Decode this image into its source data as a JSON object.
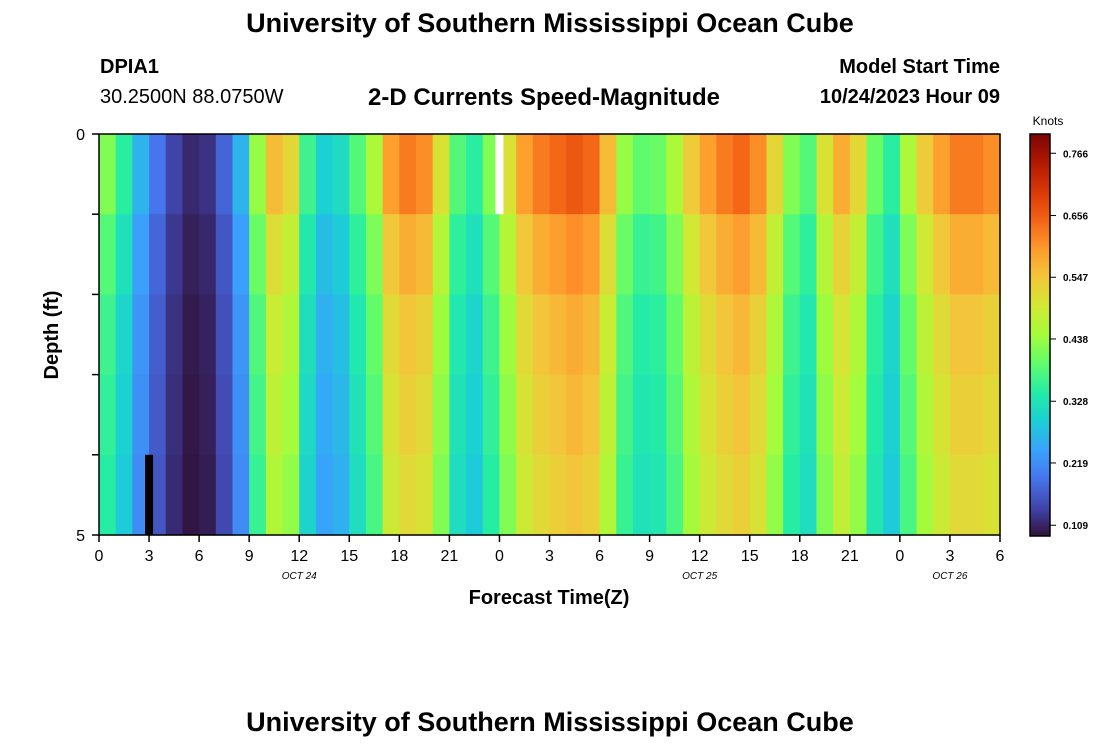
{
  "header": {
    "title": "University of Southern Mississippi Ocean Cube",
    "station_id": "DPIA1",
    "coords": "30.2500N  88.0750W",
    "product": "2-D Currents Speed-Magnitude",
    "model_start_label": "Model Start Time",
    "model_start_value": "10/24/2023 Hour 09"
  },
  "footer": {
    "title": "University of Southern Mississippi Ocean Cube"
  },
  "colors": {
    "missing_high": "#ffffff",
    "missing_low": "#000000",
    "colormap": [
      "#30123b",
      "#4145ab",
      "#4675ed",
      "#39a2fc",
      "#1bcfd4",
      "#24eca6",
      "#61fc6c",
      "#a4fc3b",
      "#d1e834",
      "#f3c63a",
      "#fe9b2d",
      "#f36315",
      "#d93806",
      "#b11901",
      "#7a0403"
    ]
  },
  "chart_data": {
    "type": "heatmap",
    "xlabel": "Forecast Time(Z)",
    "ylabel": "Depth (ft)",
    "x_range_hours": [
      0,
      54
    ],
    "y_range_ft": [
      0,
      5
    ],
    "y_tick_labels": [
      "0",
      "5"
    ],
    "x_tick_labels": [
      "0",
      "3",
      "6",
      "9",
      "12",
      "15",
      "18",
      "21",
      "0",
      "3",
      "6",
      "9",
      "12",
      "15",
      "18",
      "21",
      "0",
      "3",
      "6"
    ],
    "date_labels": [
      {
        "text": "OCT 24",
        "hour": 12
      },
      {
        "text": "OCT 25",
        "hour": 36
      },
      {
        "text": "OCT 26",
        "hour": 51
      }
    ],
    "colorbar": {
      "units": "Knots",
      "min": 0.09,
      "max": 0.8,
      "tick_labels": [
        "0.766",
        "0.656",
        "0.547",
        "0.438",
        "0.328",
        "0.219",
        "0.109"
      ],
      "tick_values": [
        0.766,
        0.656,
        0.547,
        0.438,
        0.328,
        0.219,
        0.109
      ]
    },
    "depth_layers": 5,
    "hour_columns": [
      0,
      1,
      2,
      3,
      4,
      5,
      6,
      7,
      8,
      9,
      10,
      11,
      12,
      13,
      14,
      15,
      16,
      17,
      18,
      19,
      20,
      21,
      22,
      23,
      24,
      25,
      26,
      27,
      28,
      29,
      30,
      31,
      32,
      33,
      34,
      35,
      36,
      37,
      38,
      39,
      40,
      41,
      42,
      43,
      44,
      45,
      46,
      47,
      48,
      49,
      50,
      51,
      52,
      53
    ],
    "surface_speeds": [
      0.48,
      0.4,
      0.3,
      0.22,
      0.16,
      0.13,
      0.14,
      0.2,
      0.3,
      0.5,
      0.64,
      0.6,
      0.42,
      0.34,
      0.36,
      0.44,
      0.52,
      0.68,
      0.72,
      0.7,
      0.58,
      0.44,
      0.4,
      0.48,
      0.58,
      0.68,
      0.72,
      0.74,
      0.76,
      0.74,
      0.64,
      0.5,
      0.45,
      0.46,
      0.52,
      0.62,
      0.68,
      0.72,
      0.74,
      0.7,
      0.6,
      0.48,
      0.44,
      0.58,
      0.66,
      0.6,
      0.46,
      0.4,
      0.52,
      0.62,
      0.68,
      0.72,
      0.72,
      0.7
    ],
    "bottom_scale": [
      0.87,
      0.8,
      0.76,
      0.74,
      0.72
    ],
    "missing_cells": [
      {
        "hour": 24,
        "layer": 0,
        "kind": "high"
      },
      {
        "hour": 3,
        "layer": 4,
        "kind": "low"
      }
    ]
  }
}
